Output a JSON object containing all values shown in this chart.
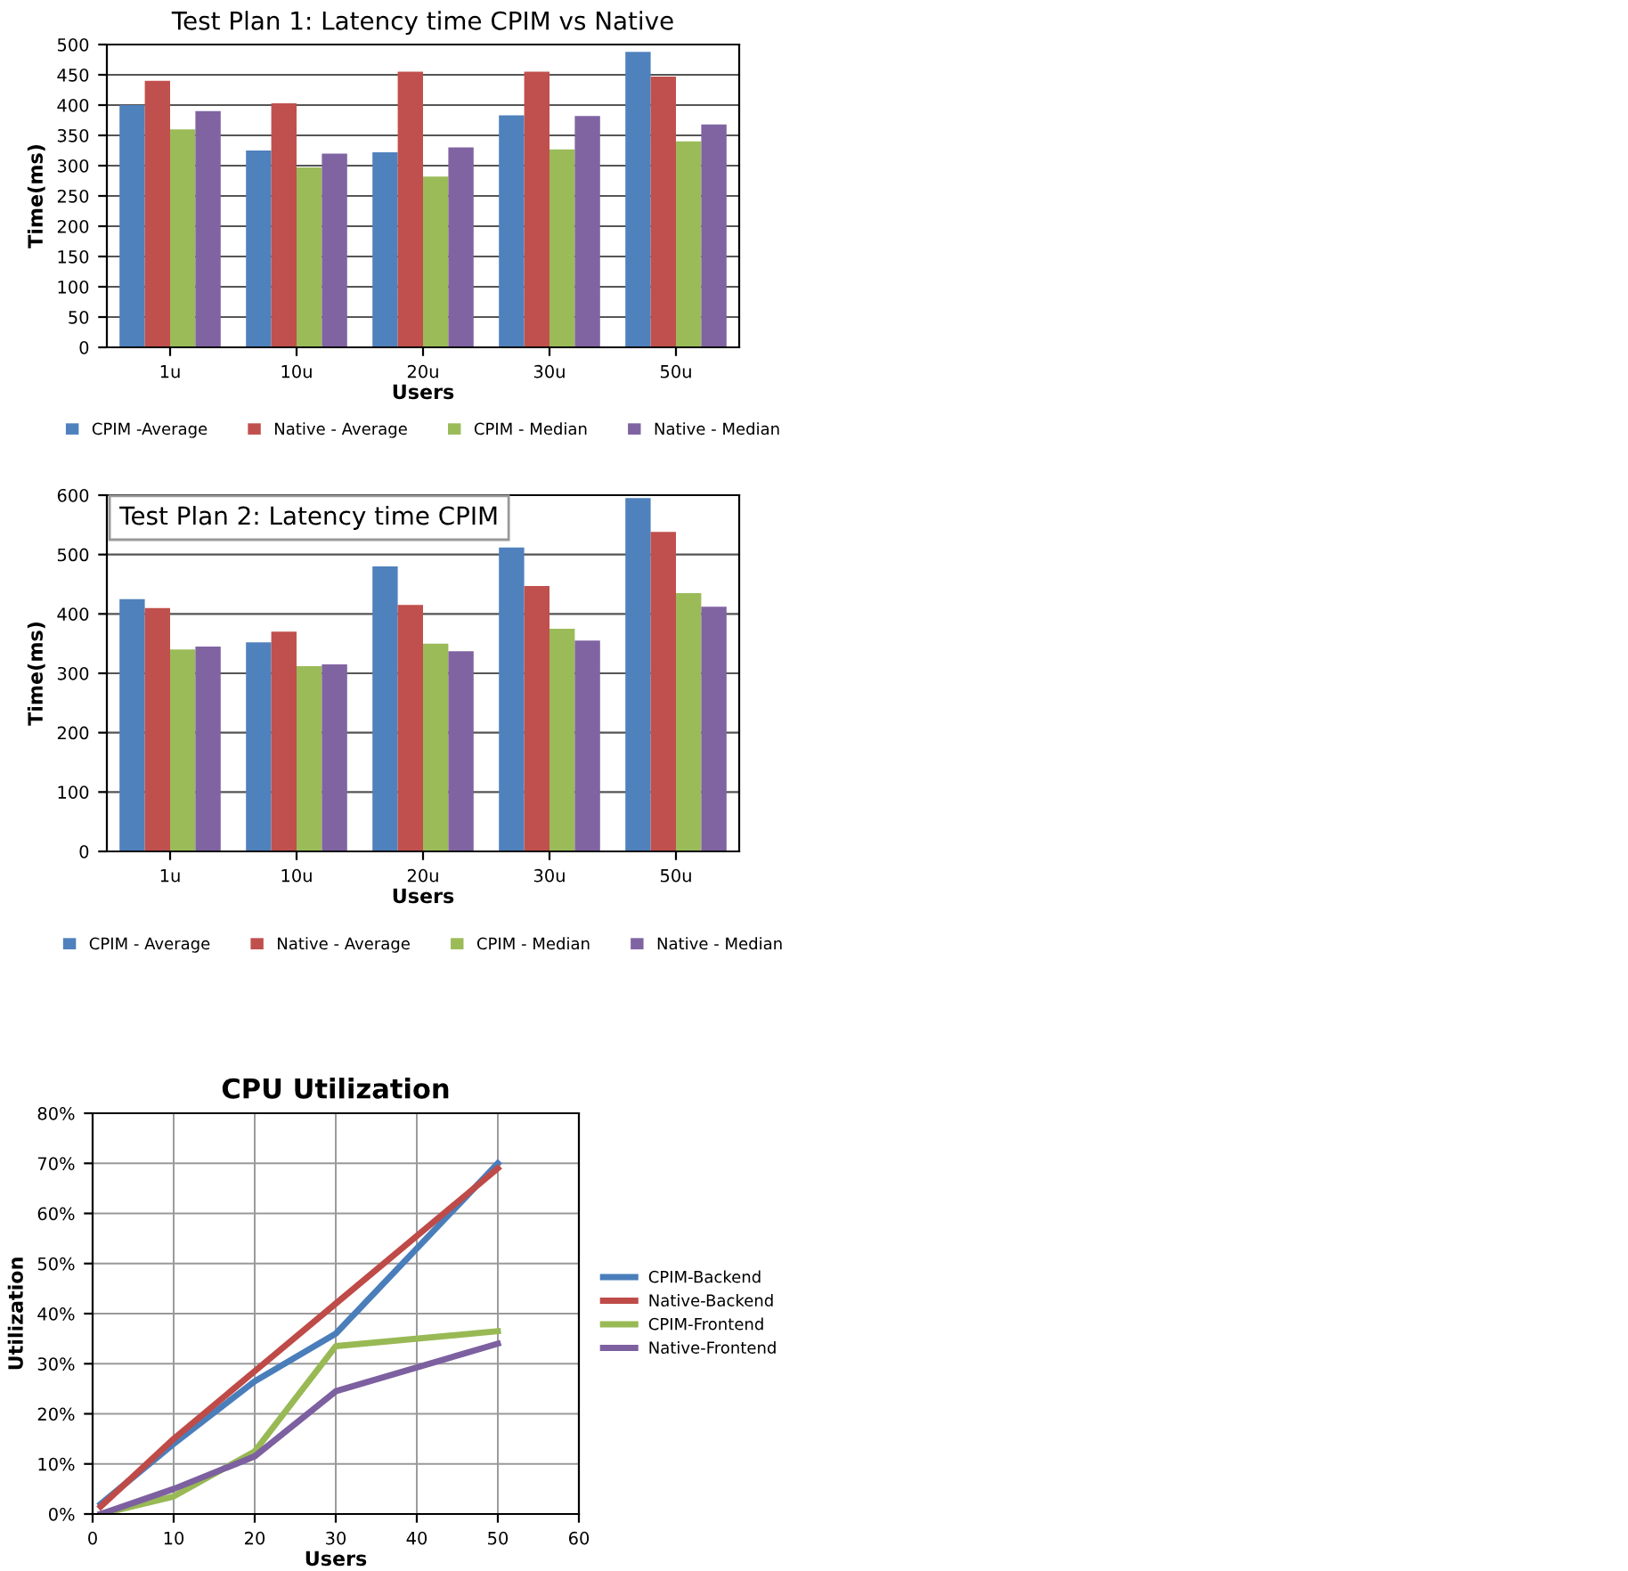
{
  "chart_data": [
    {
      "type": "bar",
      "title": "Test Plan 1: Latency time CPIM vs Native",
      "xlabel": "Users",
      "ylabel": "Time(ms)",
      "categories": [
        "1u",
        "10u",
        "20u",
        "30u",
        "50u"
      ],
      "series": [
        {
          "name": "CPIM -Average",
          "color": "#4f81bd",
          "values": [
            400,
            325,
            322,
            383,
            488
          ]
        },
        {
          "name": "Native - Average",
          "color": "#c0504d",
          "values": [
            440,
            403,
            455,
            455,
            447
          ]
        },
        {
          "name": "CPIM - Median",
          "color": "#9bbb59",
          "values": [
            360,
            297,
            282,
            327,
            340
          ]
        },
        {
          "name": "Native - Median",
          "color": "#8064a2",
          "values": [
            390,
            320,
            330,
            382,
            368
          ]
        }
      ],
      "ylim": [
        0,
        500
      ],
      "yticks": [
        0,
        50,
        100,
        150,
        200,
        250,
        300,
        350,
        400,
        450,
        500
      ],
      "grid": "y",
      "legend": "bottom"
    },
    {
      "type": "bar",
      "title": "Test Plan 2: Latency time CPIM",
      "xlabel": "Users",
      "ylabel": "Time(ms)",
      "categories": [
        "1u",
        "10u",
        "20u",
        "30u",
        "50u"
      ],
      "series": [
        {
          "name": "CPIM - Average",
          "color": "#4f81bd",
          "values": [
            425,
            352,
            480,
            512,
            595
          ]
        },
        {
          "name": "Native - Average",
          "color": "#c0504d",
          "values": [
            410,
            370,
            415,
            447,
            538
          ]
        },
        {
          "name": "CPIM - Median",
          "color": "#9bbb59",
          "values": [
            340,
            312,
            350,
            375,
            435
          ]
        },
        {
          "name": "Native - Median",
          "color": "#8064a2",
          "values": [
            345,
            315,
            337,
            355,
            412
          ]
        }
      ],
      "ylim": [
        0,
        600
      ],
      "yticks": [
        0,
        100,
        200,
        300,
        400,
        500,
        600
      ],
      "grid": "y",
      "legend": "bottom"
    },
    {
      "type": "line",
      "title": "CPU Utilization",
      "xlabel": "Users",
      "ylabel": "Utilization",
      "x": [
        1,
        10,
        20,
        30,
        50
      ],
      "series": [
        {
          "name": "CPIM-Backend",
          "color": "#4a7ebb",
          "values": [
            2,
            14,
            26.5,
            36,
            70
          ]
        },
        {
          "name": "Native-Backend",
          "color": "#be4b48",
          "values": [
            1.5,
            15,
            28.5,
            42,
            69
          ]
        },
        {
          "name": "CPIM-Frontend",
          "color": "#98b954",
          "values": [
            0,
            3.5,
            12.5,
            33.5,
            36.5
          ]
        },
        {
          "name": "Native-Frontend",
          "color": "#7d60a0",
          "values": [
            0,
            5,
            11.5,
            24.5,
            34
          ]
        }
      ],
      "xlim": [
        0,
        60
      ],
      "xticks": [
        0,
        10,
        20,
        30,
        40,
        50,
        60
      ],
      "ylim": [
        0,
        80
      ],
      "yticks": [
        {
          "value": 0,
          "label": "0%"
        },
        {
          "value": 10,
          "label": "10%"
        },
        {
          "value": 20,
          "label": "20%"
        },
        {
          "value": 30,
          "label": "30%"
        },
        {
          "value": 40,
          "label": "40%"
        },
        {
          "value": 50,
          "label": "50%"
        },
        {
          "value": 60,
          "label": "60%"
        },
        {
          "value": 70,
          "label": "70%"
        },
        {
          "value": 80,
          "label": "80%"
        }
      ],
      "grid": true,
      "legend": "right"
    }
  ]
}
